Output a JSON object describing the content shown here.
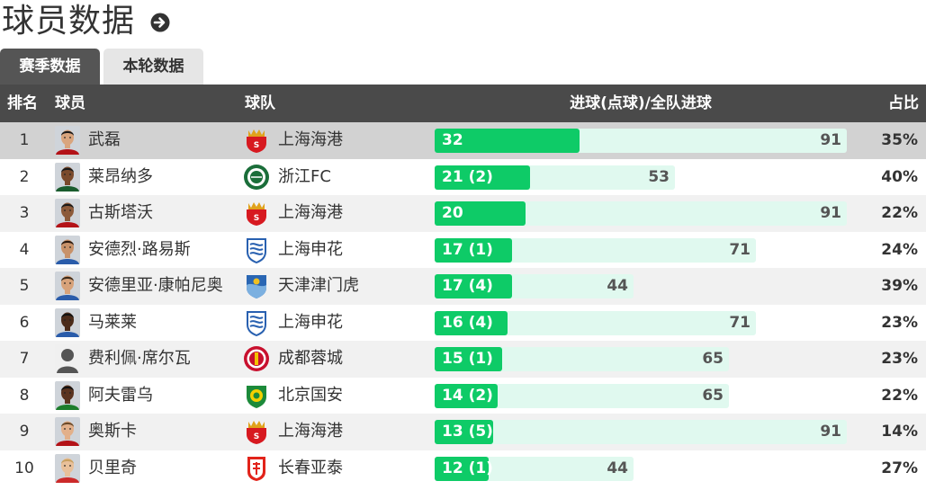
{
  "header": {
    "title": "球员数据",
    "arrow_icon": "arrow-right-circle-icon"
  },
  "tabs": [
    {
      "label": "赛季数据",
      "active": true
    },
    {
      "label": "本轮数据",
      "active": false
    }
  ],
  "table": {
    "columns": {
      "rank": "排名",
      "player": "球员",
      "team": "球队",
      "goals": "进球(点球)/全队进球",
      "pct": "占比"
    },
    "max_team_goals": 91,
    "rows": [
      {
        "rank": "1",
        "player": "武磊",
        "team": "上海海港",
        "team_key": "haigang",
        "goals": 32,
        "goals_label": "32",
        "team_goals": "91",
        "pct": "35%",
        "highlight": true
      },
      {
        "rank": "2",
        "player": "莱昂纳多",
        "team": "浙江FC",
        "team_key": "zhejiang",
        "goals": 21,
        "goals_label": "21 (2)",
        "team_goals": "53",
        "pct": "40%",
        "highlight": false
      },
      {
        "rank": "3",
        "player": "古斯塔沃",
        "team": "上海海港",
        "team_key": "haigang",
        "goals": 20,
        "goals_label": "20",
        "team_goals": "91",
        "pct": "22%",
        "highlight": false
      },
      {
        "rank": "4",
        "player": "安德烈·路易斯",
        "team": "上海申花",
        "team_key": "shenhua",
        "goals": 17,
        "goals_label": "17 (1)",
        "team_goals": "71",
        "pct": "24%",
        "highlight": false
      },
      {
        "rank": "5",
        "player": "安德里亚·康帕尼奥",
        "team": "天津津门虎",
        "team_key": "tianjin",
        "goals": 17,
        "goals_label": "17 (4)",
        "team_goals": "44",
        "pct": "39%",
        "highlight": false
      },
      {
        "rank": "6",
        "player": "马莱莱",
        "team": "上海申花",
        "team_key": "shenhua",
        "goals": 16,
        "goals_label": "16 (4)",
        "team_goals": "71",
        "pct": "23%",
        "highlight": false
      },
      {
        "rank": "7",
        "player": "费利佩·席尔瓦",
        "team": "成都蓉城",
        "team_key": "chengdu",
        "goals": 15,
        "goals_label": "15 (1)",
        "team_goals": "65",
        "pct": "23%",
        "highlight": false
      },
      {
        "rank": "8",
        "player": "阿夫雷乌",
        "team": "北京国安",
        "team_key": "guoan",
        "goals": 14,
        "goals_label": "14 (2)",
        "team_goals": "65",
        "pct": "22%",
        "highlight": false
      },
      {
        "rank": "9",
        "player": "奥斯卡",
        "team": "上海海港",
        "team_key": "haigang",
        "goals": 13,
        "goals_label": "13 (5)",
        "team_goals": "91",
        "pct": "14%",
        "highlight": false
      },
      {
        "rank": "10",
        "player": "贝里奇",
        "team": "长春亚泰",
        "team_key": "yatai",
        "goals": 12,
        "goals_label": "12 (1)",
        "team_goals": "44",
        "pct": "27%",
        "highlight": false
      }
    ]
  },
  "colors": {
    "bar_fill": "#0ecb67",
    "bar_track": "#e0f9ef",
    "header_bg": "#4a4a4a"
  }
}
